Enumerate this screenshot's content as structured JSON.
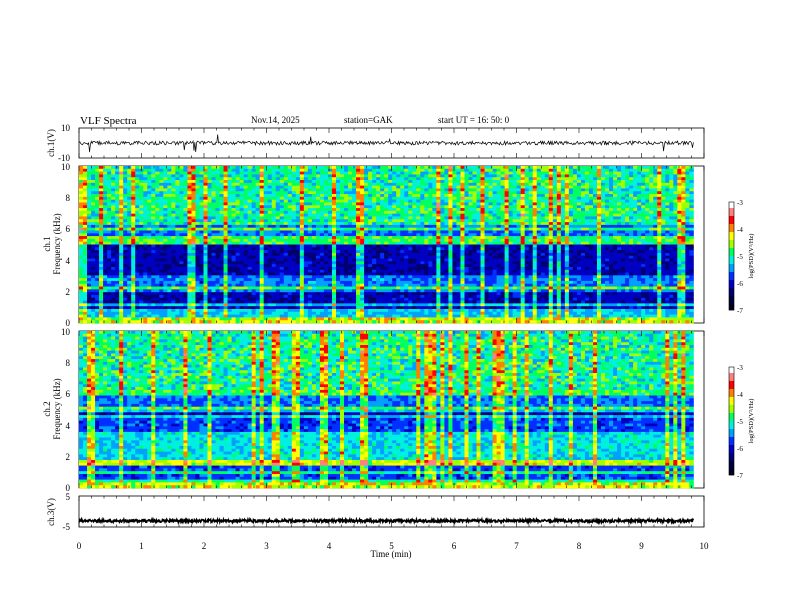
{
  "header": {
    "title": "VLF  Spectra",
    "date": "Nov.14,  2025",
    "station": "station=GAK",
    "start_ut": "start  UT  =    16: 50: 0"
  },
  "chart_data": [
    {
      "type": "line",
      "panel": "ch1-waveform",
      "ylabel": "ch.1(V)",
      "ytick_labels": [
        "10",
        "-10"
      ],
      "ylim": [
        -10,
        10
      ],
      "x_range_min": [
        0,
        9.83
      ],
      "baseline_v": 0,
      "signal": "continuous noisy waveform around 0 V with occasional spikes"
    },
    {
      "type": "heatmap",
      "panel": "ch1-spectrogram",
      "ylabel": "ch.1\nFrequency (kHz)",
      "ytick_labels": [
        "0",
        "2",
        "4",
        "6",
        "8",
        "10"
      ],
      "ylim": [
        0,
        10
      ],
      "x_range_min": [
        0,
        9.83
      ],
      "colorbar": {
        "label": "log(PSD)(V²/Hz)",
        "tick_labels": [
          "-3",
          "-4",
          "-5",
          "-6",
          "-7"
        ],
        "range": [
          -7,
          -3
        ]
      },
      "features": {
        "lines_khz": [
          0.4,
          0.7,
          1.2,
          2.2,
          5.2,
          5.5,
          6.0
        ],
        "hiss_khz": [
          2.0,
          3.0
        ]
      }
    },
    {
      "type": "heatmap",
      "panel": "ch2-spectrogram",
      "ylabel": "ch.2\nFrequency (kHz)",
      "ytick_labels": [
        "0",
        "2",
        "4",
        "6",
        "8",
        "10"
      ],
      "ylim": [
        0,
        10
      ],
      "x_range_min": [
        0,
        9.83
      ],
      "colorbar": {
        "label": "log(PSD)(V²/Hz)",
        "tick_labels": [
          "-3",
          "-4",
          "-5",
          "-6",
          "-7"
        ],
        "range": [
          -7,
          -3
        ]
      },
      "features": {
        "lines_khz": [
          0.5,
          1.0,
          1.6,
          4.6,
          5.0,
          6.0,
          6.2
        ],
        "hiss_khz": [
          1.5,
          3.5
        ]
      }
    },
    {
      "type": "line",
      "panel": "ch3-waveform",
      "ylabel": "ch.3(V)",
      "ytick_labels": [
        "5",
        "-5"
      ],
      "ylim": [
        -5,
        5
      ],
      "x_range_min": [
        0,
        9.83
      ],
      "baseline_v": -3,
      "signal": "dense periodic signal near -3 V"
    }
  ],
  "x_axis": {
    "label": "Time  (min)",
    "tick_labels": [
      "0",
      "1",
      "2",
      "3",
      "4",
      "5",
      "6",
      "7",
      "8",
      "9",
      "10"
    ],
    "range": [
      0,
      10
    ]
  },
  "colormap": [
    "#000020",
    "#00003a",
    "#000070",
    "#0000c0",
    "#0030ff",
    "#00a0ff",
    "#00f0e0",
    "#00ff60",
    "#a0ff00",
    "#ffff00",
    "#ff8000",
    "#ff0000",
    "#ff8080",
    "#ffffff"
  ]
}
